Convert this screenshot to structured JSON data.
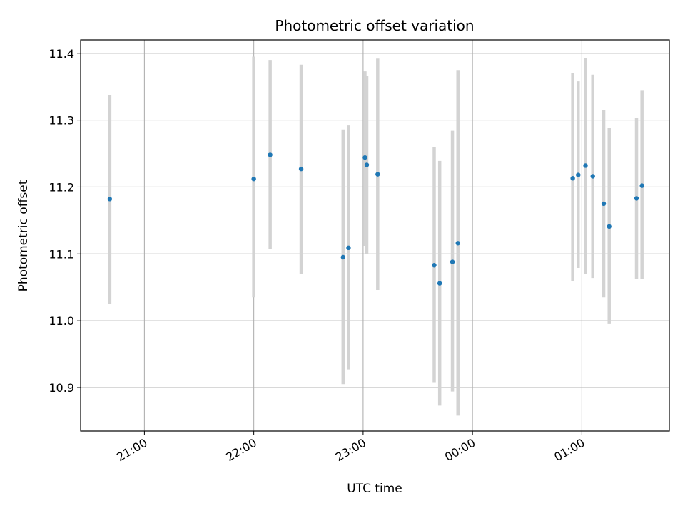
{
  "chart_data": {
    "type": "scatter",
    "title": "Photometric offset variation",
    "xlabel": "UTC time",
    "ylabel": "Photometric offset",
    "x_axis_kind": "time",
    "x_range": [
      "20:25",
      "01:48"
    ],
    "ylim": [
      10.835,
      11.42
    ],
    "grid": true,
    "x_ticks": [
      "21:00",
      "22:00",
      "23:00",
      "00:00",
      "01:00"
    ],
    "y_ticks": [
      10.9,
      11.0,
      11.1,
      11.2,
      11.3,
      11.4
    ],
    "y_tick_labels": [
      "10.9",
      "11.0",
      "11.1",
      "11.2",
      "11.3",
      "11.4"
    ],
    "marker_color": "#1f77b4",
    "errorbar_color": "#d3d3d3",
    "points": [
      {
        "time": "20:41",
        "y": 11.182,
        "ylow": 11.025,
        "yhigh": 11.338
      },
      {
        "time": "22:00",
        "y": 11.212,
        "ylow": 11.035,
        "yhigh": 11.395
      },
      {
        "time": "22:09",
        "y": 11.248,
        "ylow": 11.107,
        "yhigh": 11.39
      },
      {
        "time": "22:26",
        "y": 11.227,
        "ylow": 11.07,
        "yhigh": 11.383
      },
      {
        "time": "22:49",
        "y": 11.095,
        "ylow": 10.905,
        "yhigh": 11.286
      },
      {
        "time": "22:52",
        "y": 11.109,
        "ylow": 10.927,
        "yhigh": 11.292
      },
      {
        "time": "23:01",
        "y": 11.244,
        "ylow": 11.112,
        "yhigh": 11.373
      },
      {
        "time": "23:02",
        "y": 11.233,
        "ylow": 11.1,
        "yhigh": 11.366
      },
      {
        "time": "23:08",
        "y": 11.219,
        "ylow": 11.046,
        "yhigh": 11.392
      },
      {
        "time": "23:39",
        "y": 11.083,
        "ylow": 10.908,
        "yhigh": 11.26
      },
      {
        "time": "23:42",
        "y": 11.056,
        "ylow": 10.873,
        "yhigh": 11.239
      },
      {
        "time": "23:49",
        "y": 11.088,
        "ylow": 10.894,
        "yhigh": 11.284
      },
      {
        "time": "23:52",
        "y": 11.116,
        "ylow": 10.858,
        "yhigh": 11.375
      },
      {
        "time": "00:55",
        "y": 11.213,
        "ylow": 11.059,
        "yhigh": 11.37
      },
      {
        "time": "00:58",
        "y": 11.218,
        "ylow": 11.079,
        "yhigh": 11.358
      },
      {
        "time": "01:02",
        "y": 11.232,
        "ylow": 11.07,
        "yhigh": 11.393
      },
      {
        "time": "01:06",
        "y": 11.216,
        "ylow": 11.064,
        "yhigh": 11.368
      },
      {
        "time": "01:12",
        "y": 11.175,
        "ylow": 11.035,
        "yhigh": 11.315
      },
      {
        "time": "01:15",
        "y": 11.141,
        "ylow": 10.995,
        "yhigh": 11.288
      },
      {
        "time": "01:30",
        "y": 11.183,
        "ylow": 11.063,
        "yhigh": 11.303
      },
      {
        "time": "01:33",
        "y": 11.202,
        "ylow": 11.062,
        "yhigh": 11.344
      }
    ]
  }
}
